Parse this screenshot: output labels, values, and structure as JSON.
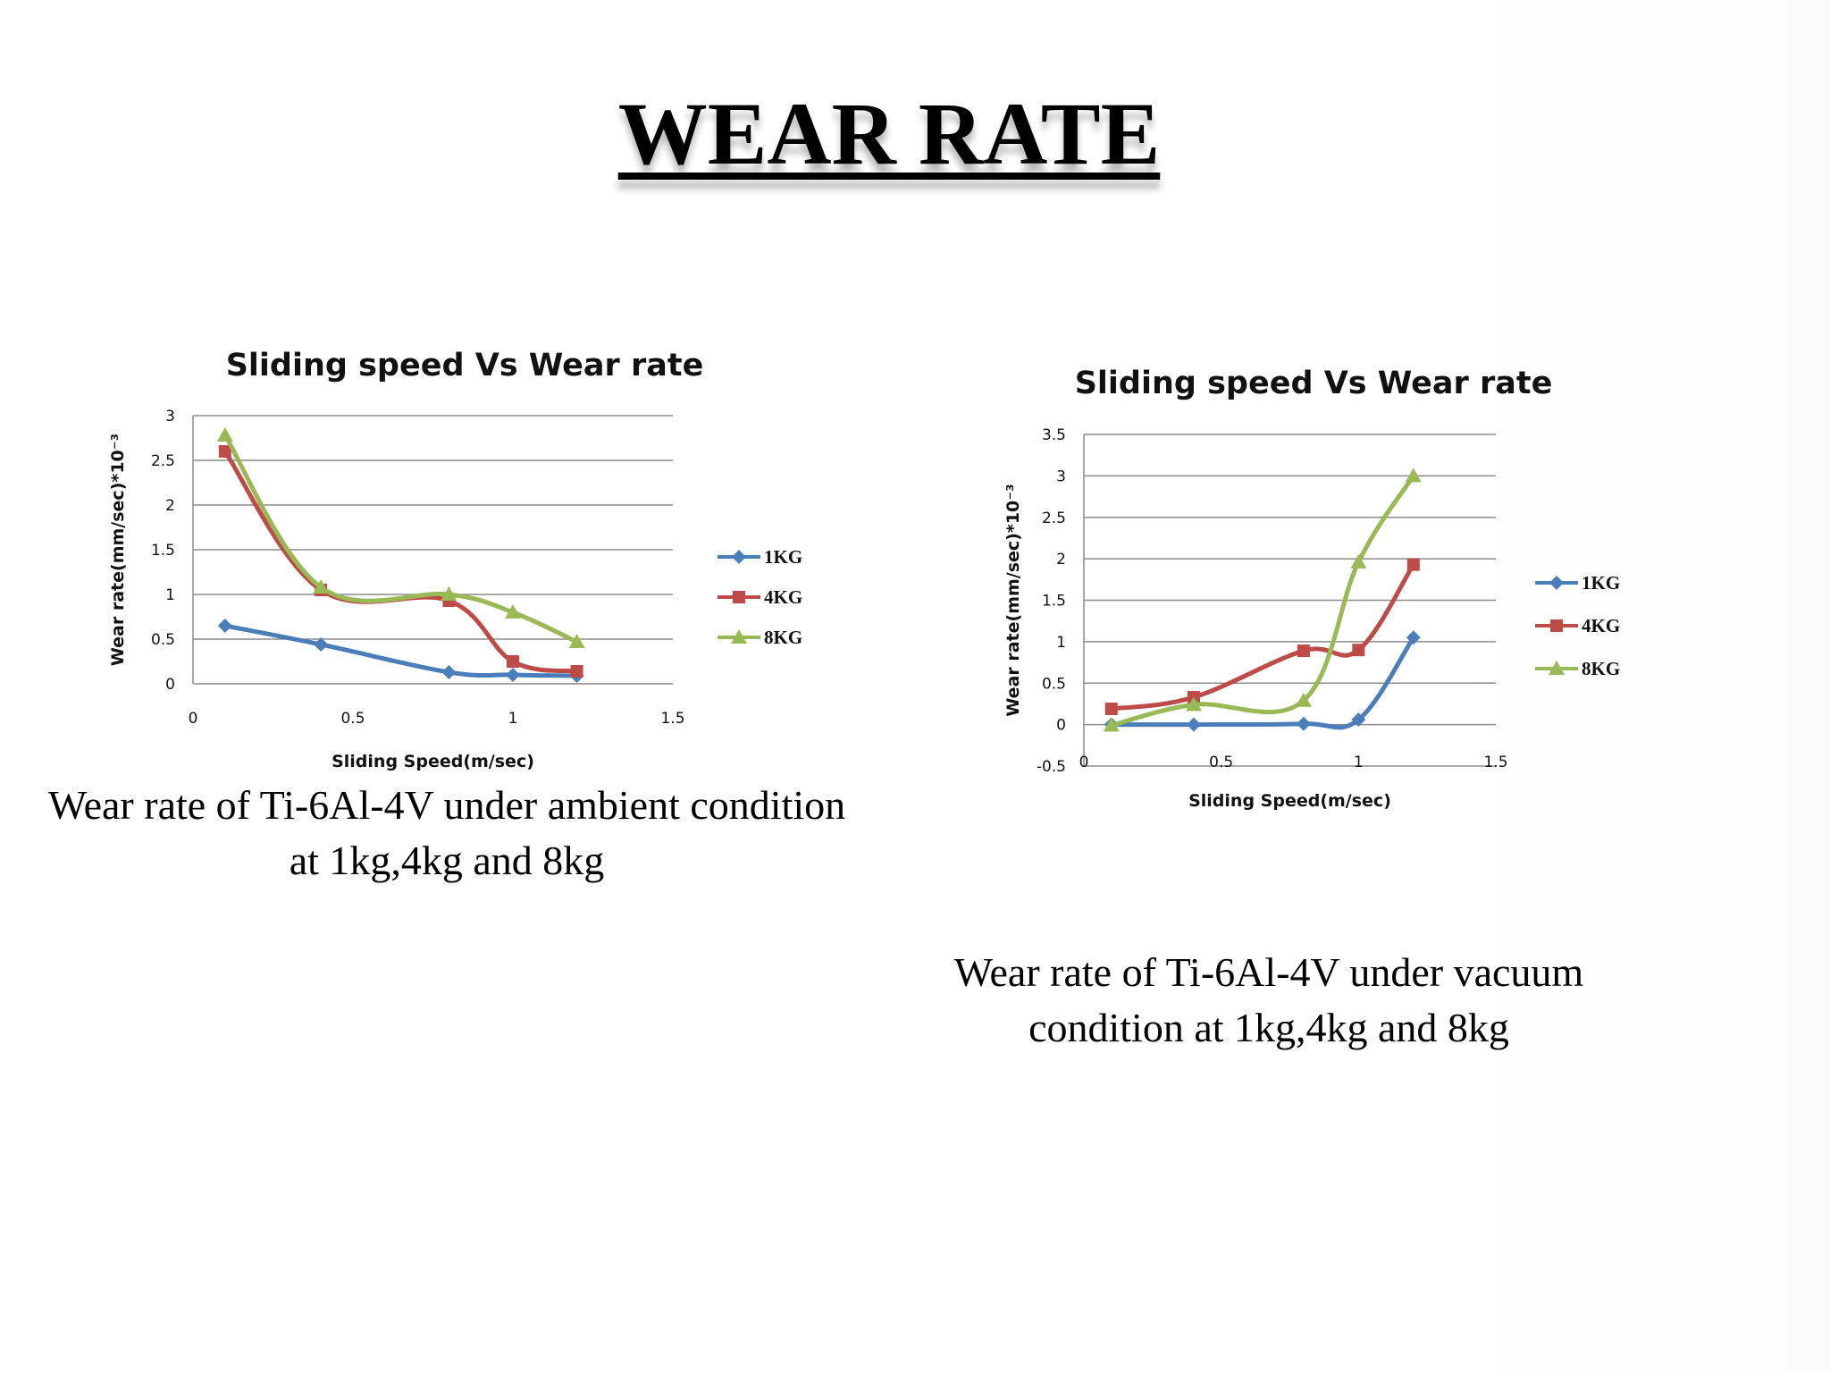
{
  "slide": {
    "title": "WEAR RATE",
    "captions": {
      "ambient": "Wear rate of  Ti-6Al-4V under ambient condition at 1kg,4kg and 8kg",
      "vacuum": "Wear rate of  Ti-6Al-4V under vacuum condition at 1kg,4kg and 8kg"
    }
  },
  "chart_data": [
    {
      "id": "ambient",
      "type": "line",
      "title": "Sliding speed Vs Wear rate",
      "xlabel": "Sliding Speed(m/sec)",
      "ylabel": "Wear rate(mm/sec)*10⁻³",
      "xlim": [
        0,
        1.5
      ],
      "ylim": [
        0,
        3
      ],
      "xticks": [
        0,
        0.5,
        1,
        1.5
      ],
      "yticks": [
        0,
        0.5,
        1,
        1.5,
        2,
        2.5,
        3
      ],
      "grid": true,
      "legend_position": "right",
      "smooth": true,
      "series": [
        {
          "name": "1KG",
          "color": "#4a7ebb",
          "marker": "diamond",
          "x": [
            0.1,
            0.4,
            0.8,
            1.0,
            1.2
          ],
          "y": [
            0.65,
            0.44,
            0.13,
            0.1,
            0.09
          ]
        },
        {
          "name": "4KG",
          "color": "#be4b48",
          "marker": "square",
          "x": [
            0.1,
            0.4,
            0.8,
            1.0,
            1.2
          ],
          "y": [
            2.6,
            1.05,
            0.93,
            0.25,
            0.14
          ]
        },
        {
          "name": "8KG",
          "color": "#98b954",
          "marker": "triangle",
          "x": [
            0.1,
            0.4,
            0.8,
            1.0,
            1.2
          ],
          "y": [
            2.78,
            1.08,
            1.0,
            0.8,
            0.47
          ]
        }
      ]
    },
    {
      "id": "vacuum",
      "type": "line",
      "title": "Sliding speed Vs Wear rate",
      "xlabel": "Sliding Speed(m/sec)",
      "ylabel": "Wear rate(mm/sec)*10⁻³",
      "xlim": [
        0,
        1.5
      ],
      "ylim": [
        -0.5,
        3.5
      ],
      "xticks": [
        0,
        0.5,
        1,
        1.5
      ],
      "yticks": [
        -0.5,
        0,
        0.5,
        1,
        1.5,
        2,
        2.5,
        3,
        3.5
      ],
      "grid": true,
      "legend_position": "right",
      "smooth": true,
      "series": [
        {
          "name": "1KG",
          "color": "#4a7ebb",
          "marker": "diamond",
          "x": [
            0.1,
            0.4,
            0.8,
            1.0,
            1.2
          ],
          "y": [
            0.0,
            0.0,
            0.01,
            0.06,
            1.05
          ]
        },
        {
          "name": "4KG",
          "color": "#be4b48",
          "marker": "square",
          "x": [
            0.1,
            0.4,
            0.8,
            1.0,
            1.2
          ],
          "y": [
            0.19,
            0.33,
            0.89,
            0.9,
            1.93
          ]
        },
        {
          "name": "8KG",
          "color": "#98b954",
          "marker": "triangle",
          "x": [
            0.1,
            0.4,
            0.8,
            1.0,
            1.2
          ],
          "y": [
            -0.01,
            0.24,
            0.29,
            1.96,
            3.0
          ]
        }
      ]
    }
  ]
}
